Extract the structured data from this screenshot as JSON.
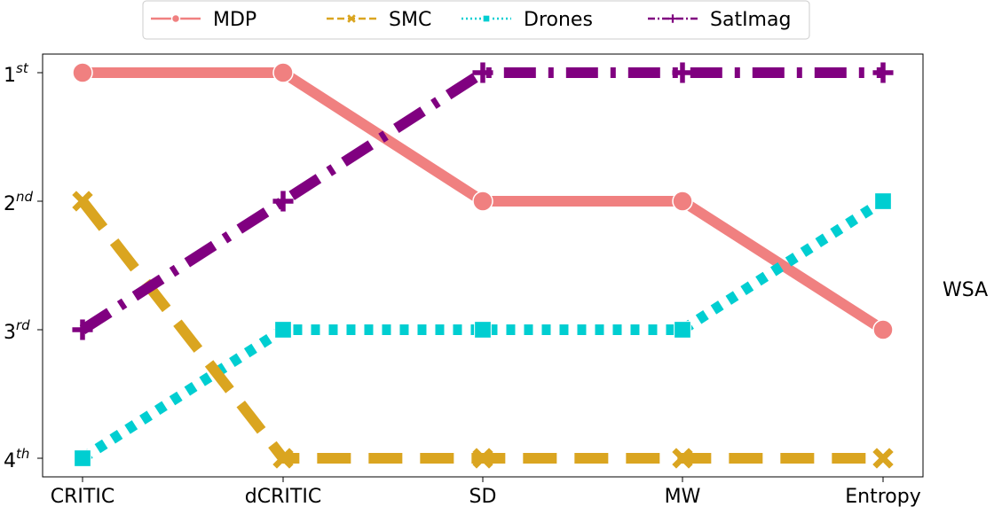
{
  "chart_data": {
    "type": "line",
    "title": "",
    "xlabel": "",
    "ylabel": "",
    "side_label": "WSA",
    "categories": [
      "CRITIC",
      "dCRITIC",
      "SD",
      "MW",
      "Entropy"
    ],
    "y_ticks": [
      {
        "value": 1,
        "base": "1",
        "sup": "st"
      },
      {
        "value": 2,
        "base": "2",
        "sup": "nd"
      },
      {
        "value": 3,
        "base": "3",
        "sup": "rd"
      },
      {
        "value": 4,
        "base": "4",
        "sup": "th"
      }
    ],
    "ylim": [
      4.1,
      0.85
    ],
    "y_inverted": true,
    "grid": false,
    "legend_position": "top-center",
    "series": [
      {
        "name": "MDP",
        "values": [
          1,
          1,
          2,
          2,
          3
        ],
        "color": "#f08080",
        "style": "solid",
        "marker": "circle"
      },
      {
        "name": "SMC",
        "values": [
          2,
          4,
          4,
          4,
          4
        ],
        "color": "#daa520",
        "style": "dashed",
        "marker": "x"
      },
      {
        "name": "Drones",
        "values": [
          4,
          3,
          3,
          3,
          2
        ],
        "color": "#00ced1",
        "style": "dotted",
        "marker": "square"
      },
      {
        "name": "SatImag",
        "values": [
          3,
          2,
          1,
          1,
          1
        ],
        "color": "#800080",
        "style": "dashdot",
        "marker": "plus"
      }
    ]
  }
}
